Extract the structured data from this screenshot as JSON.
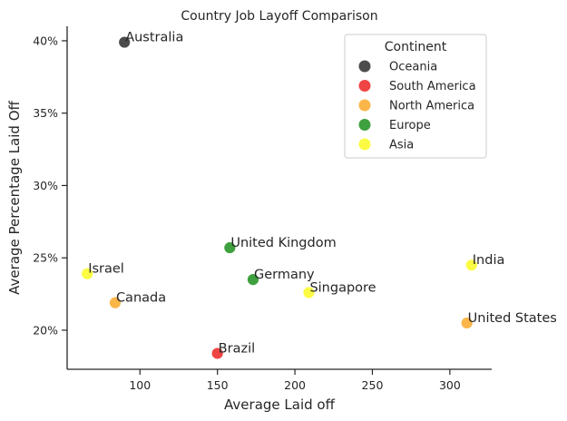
{
  "chart_data": {
    "type": "scatter",
    "title": "Country Job Layoff Comparison",
    "xlabel": "Average Laid off",
    "ylabel": "Average Percentage Laid Off",
    "xlim": [
      53,
      327
    ],
    "ylim": [
      17.3,
      41.0
    ],
    "x_ticks": [
      100,
      150,
      200,
      250,
      300
    ],
    "y_ticks": [
      20,
      25,
      30,
      35,
      40
    ],
    "y_tick_labels": [
      "20%",
      "25%",
      "30%",
      "35%",
      "40%"
    ],
    "grid": false,
    "legend": {
      "title": "Continent",
      "placement": "top-right",
      "entries": [
        {
          "label": "Oceania",
          "color": "#3d3d3d"
        },
        {
          "label": "South America",
          "color": "#ee3434"
        },
        {
          "label": "North America",
          "color": "#fbb03b"
        },
        {
          "label": "Europe",
          "color": "#2e982e"
        },
        {
          "label": "Asia",
          "color": "#fbfb34"
        }
      ]
    },
    "points": [
      {
        "label": "Australia",
        "continent": "Oceania",
        "x": 90,
        "y": 39.9
      },
      {
        "label": "United Kingdom",
        "continent": "Europe",
        "x": 158,
        "y": 25.7
      },
      {
        "label": "India",
        "continent": "Asia",
        "x": 314,
        "y": 24.5
      },
      {
        "label": "Israel",
        "continent": "Asia",
        "x": 66,
        "y": 23.9
      },
      {
        "label": "Germany",
        "continent": "Europe",
        "x": 173,
        "y": 23.5
      },
      {
        "label": "Singapore",
        "continent": "Asia",
        "x": 209,
        "y": 22.6
      },
      {
        "label": "Canada",
        "continent": "North America",
        "x": 84,
        "y": 21.9
      },
      {
        "label": "United States",
        "continent": "North America",
        "x": 311,
        "y": 20.5
      },
      {
        "label": "Brazil",
        "continent": "South America",
        "x": 150,
        "y": 18.4
      }
    ]
  }
}
